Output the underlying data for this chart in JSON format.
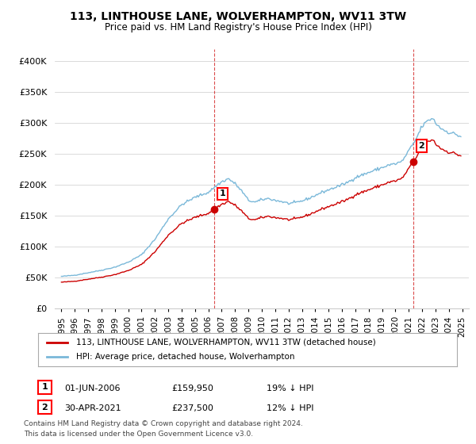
{
  "title": "113, LINTHOUSE LANE, WOLVERHAMPTON, WV11 3TW",
  "subtitle": "Price paid vs. HM Land Registry's House Price Index (HPI)",
  "legend_line1": "113, LINTHOUSE LANE, WOLVERHAMPTON, WV11 3TW (detached house)",
  "legend_line2": "HPI: Average price, detached house, Wolverhampton",
  "annotation1_label": "1",
  "annotation1_date": "01-JUN-2006",
  "annotation1_price": "£159,950",
  "annotation1_hpi": "19% ↓ HPI",
  "annotation1_year": 2006.42,
  "annotation1_value": 159950,
  "annotation2_label": "2",
  "annotation2_date": "30-APR-2021",
  "annotation2_price": "£237,500",
  "annotation2_hpi": "12% ↓ HPI",
  "annotation2_year": 2021.33,
  "annotation2_value": 237500,
  "footnote1": "Contains HM Land Registry data © Crown copyright and database right 2024.",
  "footnote2": "This data is licensed under the Open Government Licence v3.0.",
  "hpi_color": "#7ab8d9",
  "price_color": "#cc0000",
  "vline_color": "#cc0000",
  "background_color": "#ffffff",
  "ylim": [
    0,
    420000
  ],
  "yticks": [
    0,
    50000,
    100000,
    150000,
    200000,
    250000,
    300000,
    350000,
    400000
  ],
  "ytick_labels": [
    "£0",
    "£50K",
    "£100K",
    "£150K",
    "£200K",
    "£250K",
    "£300K",
    "£350K",
    "£400K"
  ],
  "xlim_start": 1994.5,
  "xlim_end": 2025.5,
  "hpi_anchors": [
    [
      1995.0,
      52000
    ],
    [
      1996.0,
      54000
    ],
    [
      1997.0,
      58000
    ],
    [
      1998.0,
      62000
    ],
    [
      1999.0,
      67000
    ],
    [
      2000.0,
      75000
    ],
    [
      2001.0,
      87000
    ],
    [
      2002.0,
      112000
    ],
    [
      2003.0,
      145000
    ],
    [
      2004.0,
      168000
    ],
    [
      2005.0,
      180000
    ],
    [
      2006.0,
      188000
    ],
    [
      2006.5,
      197000
    ],
    [
      2007.0,
      205000
    ],
    [
      2007.5,
      210000
    ],
    [
      2008.0,
      202000
    ],
    [
      2008.5,
      190000
    ],
    [
      2009.0,
      175000
    ],
    [
      2009.5,
      172000
    ],
    [
      2010.0,
      176000
    ],
    [
      2010.5,
      178000
    ],
    [
      2011.0,
      175000
    ],
    [
      2011.5,
      173000
    ],
    [
      2012.0,
      170000
    ],
    [
      2012.5,
      171000
    ],
    [
      2013.0,
      174000
    ],
    [
      2013.5,
      178000
    ],
    [
      2014.0,
      183000
    ],
    [
      2014.5,
      188000
    ],
    [
      2015.0,
      192000
    ],
    [
      2015.5,
      196000
    ],
    [
      2016.0,
      200000
    ],
    [
      2016.5,
      205000
    ],
    [
      2017.0,
      212000
    ],
    [
      2017.5,
      216000
    ],
    [
      2018.0,
      220000
    ],
    [
      2018.5,
      224000
    ],
    [
      2019.0,
      228000
    ],
    [
      2019.5,
      232000
    ],
    [
      2020.0,
      234000
    ],
    [
      2020.5,
      238000
    ],
    [
      2021.0,
      255000
    ],
    [
      2021.5,
      272000
    ],
    [
      2022.0,
      295000
    ],
    [
      2022.5,
      305000
    ],
    [
      2022.8,
      308000
    ],
    [
      2023.0,
      300000
    ],
    [
      2023.5,
      290000
    ],
    [
      2024.0,
      285000
    ],
    [
      2024.5,
      282000
    ],
    [
      2024.9,
      278000
    ]
  ]
}
